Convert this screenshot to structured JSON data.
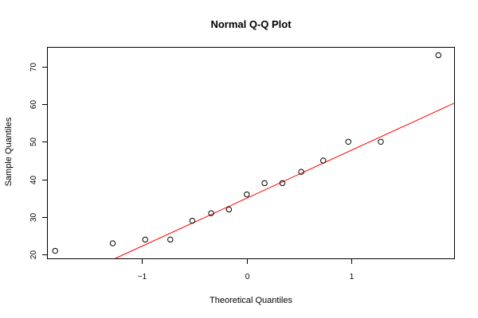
{
  "chart_data": {
    "type": "scatter",
    "title": "Normal Q-Q Plot",
    "xlabel": "Theoretical Quantiles",
    "ylabel": "Sample Quantiles",
    "xlim": [
      -1.9,
      1.98
    ],
    "ylim": [
      19,
      75
    ],
    "x_ticks": [
      -1,
      0,
      1
    ],
    "x_tick_labels": [
      "−1",
      "0",
      "1"
    ],
    "y_ticks": [
      20,
      30,
      40,
      50,
      60,
      70
    ],
    "y_tick_labels": [
      "20",
      "30",
      "40",
      "50",
      "60",
      "70"
    ],
    "grid": false,
    "points": [
      {
        "x": -1.83,
        "y": 21
      },
      {
        "x": -1.28,
        "y": 23
      },
      {
        "x": -0.97,
        "y": 24
      },
      {
        "x": -0.73,
        "y": 24
      },
      {
        "x": -0.52,
        "y": 29
      },
      {
        "x": -0.34,
        "y": 31
      },
      {
        "x": -0.17,
        "y": 32
      },
      {
        "x": 0.0,
        "y": 36
      },
      {
        "x": 0.17,
        "y": 39
      },
      {
        "x": 0.34,
        "y": 39
      },
      {
        "x": 0.52,
        "y": 42
      },
      {
        "x": 0.73,
        "y": 45
      },
      {
        "x": 0.97,
        "y": 50
      },
      {
        "x": 1.28,
        "y": 50
      },
      {
        "x": 1.83,
        "y": 73
      }
    ],
    "reference_line": {
      "intercept": 35.0,
      "slope": 12.75,
      "color": "#ff0000"
    },
    "point_color": "#000000"
  }
}
